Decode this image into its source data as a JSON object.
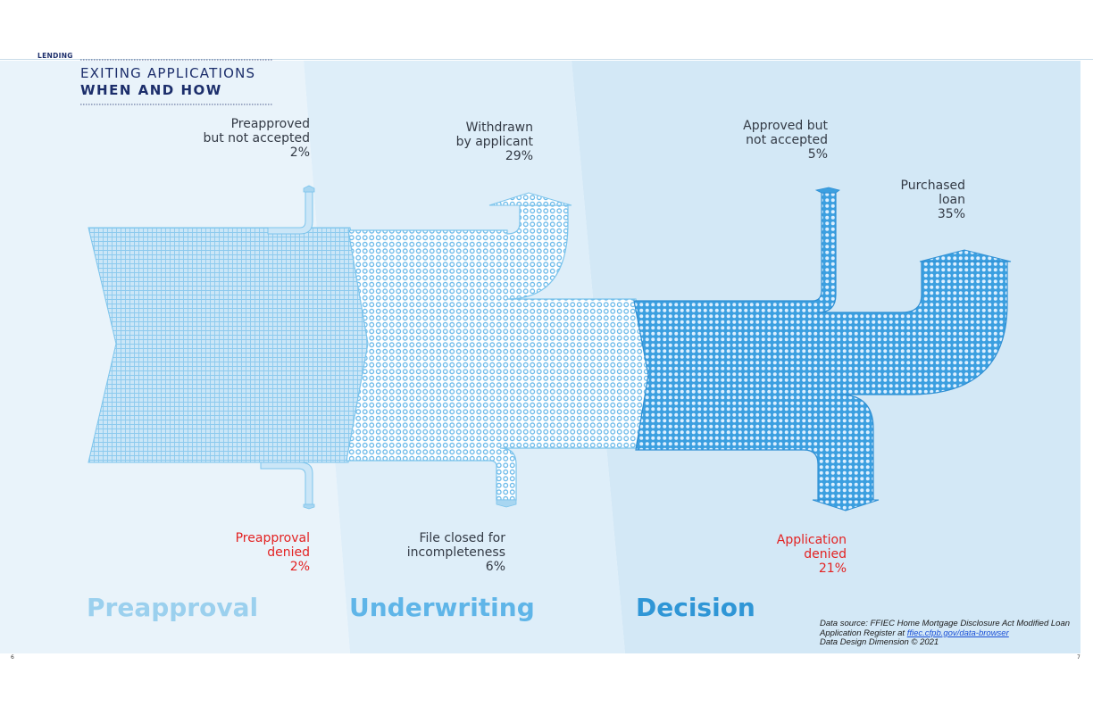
{
  "section": "LENDING",
  "title": {
    "line1": "EXITING APPLICATIONS",
    "line2": "WHEN AND HOW"
  },
  "stages": {
    "preapproval": "Preapproval",
    "underwriting": "Underwriting",
    "decision": "Decision"
  },
  "outcomes": {
    "preapproved_not_accepted": {
      "line1": "Preapproved",
      "line2": "but not accepted",
      "pct": "2%"
    },
    "withdrawn": {
      "line1": "Withdrawn",
      "line2": "by applicant",
      "pct": "29%"
    },
    "approved_not_accepted": {
      "line1": "Approved but",
      "line2": "not accepted",
      "pct": "5%"
    },
    "purchased_loan": {
      "line1": "Purchased",
      "line2": "loan",
      "pct": "35%"
    },
    "preapproval_denied": {
      "line1": "Preapproval",
      "line2": "denied",
      "pct": "2%"
    },
    "file_closed": {
      "line1": "File closed for",
      "line2": "incompleteness",
      "pct": "6%"
    },
    "application_denied": {
      "line1": "Application",
      "line2": "denied",
      "pct": "21%"
    }
  },
  "source": {
    "line1": "Data source: FFIEC Home Mortgage Disclosure Act Modified Loan",
    "line2_prefix": "Application Register at ",
    "link": "ffiec.cfpb.gov/data-browser",
    "line3": "Data Design Dimension © 2021"
  },
  "pages": {
    "left": "6",
    "right": "7"
  },
  "colors": {
    "navy": "#1c2e6b",
    "denied_red": "#e32222",
    "bg_preapproval": "#e9f3fa",
    "bg_underwriting": "#deeef9",
    "bg_decision": "#d3e8f6",
    "flow_light": "#a8d6f1",
    "flow_mid": "#7ec2ec",
    "flow_dark": "#45a6e3",
    "stage_preapproval": "#9bd0ee",
    "stage_underwriting": "#5fb5e8",
    "stage_decision": "#2f96d6"
  }
}
